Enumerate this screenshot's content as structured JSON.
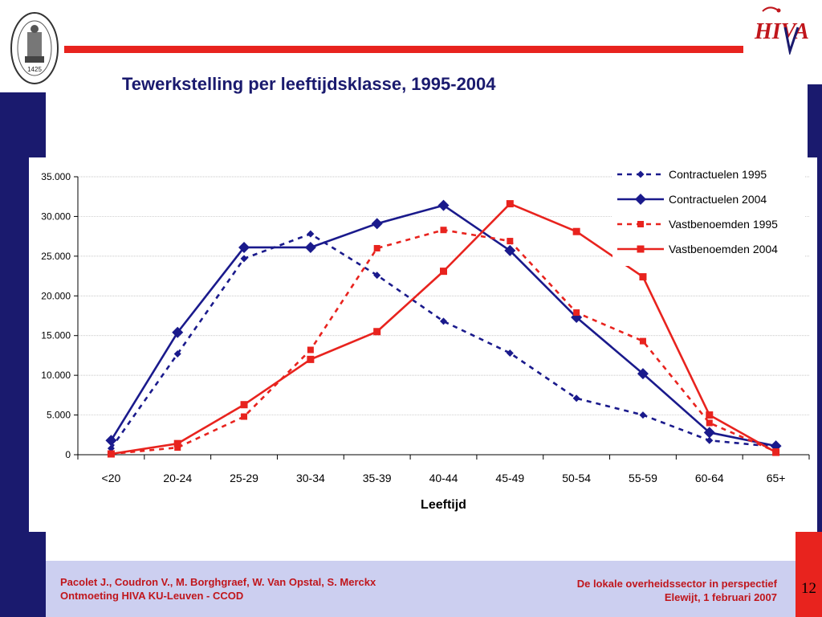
{
  "slide": {
    "title": "Tewerkstelling per leeftijdsklasse, 1995-2004",
    "seal_year": "1425",
    "logo_text": "HIVA",
    "footer_left_line1": "Pacolet J., Coudron V., M. Borghgraef, W. Van Opstal, S. Merckx",
    "footer_left_line2": "Ontmoeting HIVA KU-Leuven - CCOD",
    "footer_right_line1": "De lokale overheidssector in perspectief",
    "footer_right_line2": "Elewijt, 1 februari 2007",
    "page_number": "12",
    "colors": {
      "navy": "#1a1a6e",
      "red": "#e8231e",
      "footer_bg": "#cccff0",
      "footer_text": "#c0161c"
    }
  },
  "chart_data": {
    "type": "line",
    "xlabel": "Leeftijd",
    "ylabel": "",
    "categories": [
      "<20",
      "20-24",
      "25-29",
      "30-34",
      "35-39",
      "40-44",
      "45-49",
      "50-54",
      "55-59",
      "60-64",
      "65+"
    ],
    "ylim": [
      0,
      35000
    ],
    "yticks": [
      0,
      5000,
      10000,
      15000,
      20000,
      25000,
      30000,
      35000
    ],
    "ytick_labels": [
      "0",
      "5.000",
      "10.000",
      "15.000",
      "20.000",
      "25.000",
      "30.000",
      "35.000"
    ],
    "grid": true,
    "legend_position": "top-right",
    "series": [
      {
        "name": "Contractuelen 1995",
        "color": "#1a1a8c",
        "dashed": true,
        "marker": "diamond-small",
        "values": [
          800,
          12700,
          24700,
          27800,
          22600,
          16800,
          12800,
          7100,
          5000,
          1800,
          1000
        ]
      },
      {
        "name": "Contractuelen 2004",
        "color": "#1a1a8c",
        "dashed": false,
        "marker": "diamond",
        "values": [
          1800,
          15400,
          26100,
          26100,
          29100,
          31400,
          25700,
          17300,
          10200,
          2800,
          1100
        ]
      },
      {
        "name": "Vastbenoemden 1995",
        "color": "#e8231e",
        "dashed": true,
        "marker": "square-small",
        "values": [
          100,
          900,
          4800,
          13200,
          26000,
          28300,
          26900,
          17900,
          14300,
          4000,
          400
        ]
      },
      {
        "name": "Vastbenoemden 2004",
        "color": "#e8231e",
        "dashed": false,
        "marker": "square",
        "values": [
          100,
          1400,
          6300,
          12000,
          15500,
          23100,
          31600,
          28100,
          22400,
          5000,
          300
        ]
      }
    ]
  }
}
